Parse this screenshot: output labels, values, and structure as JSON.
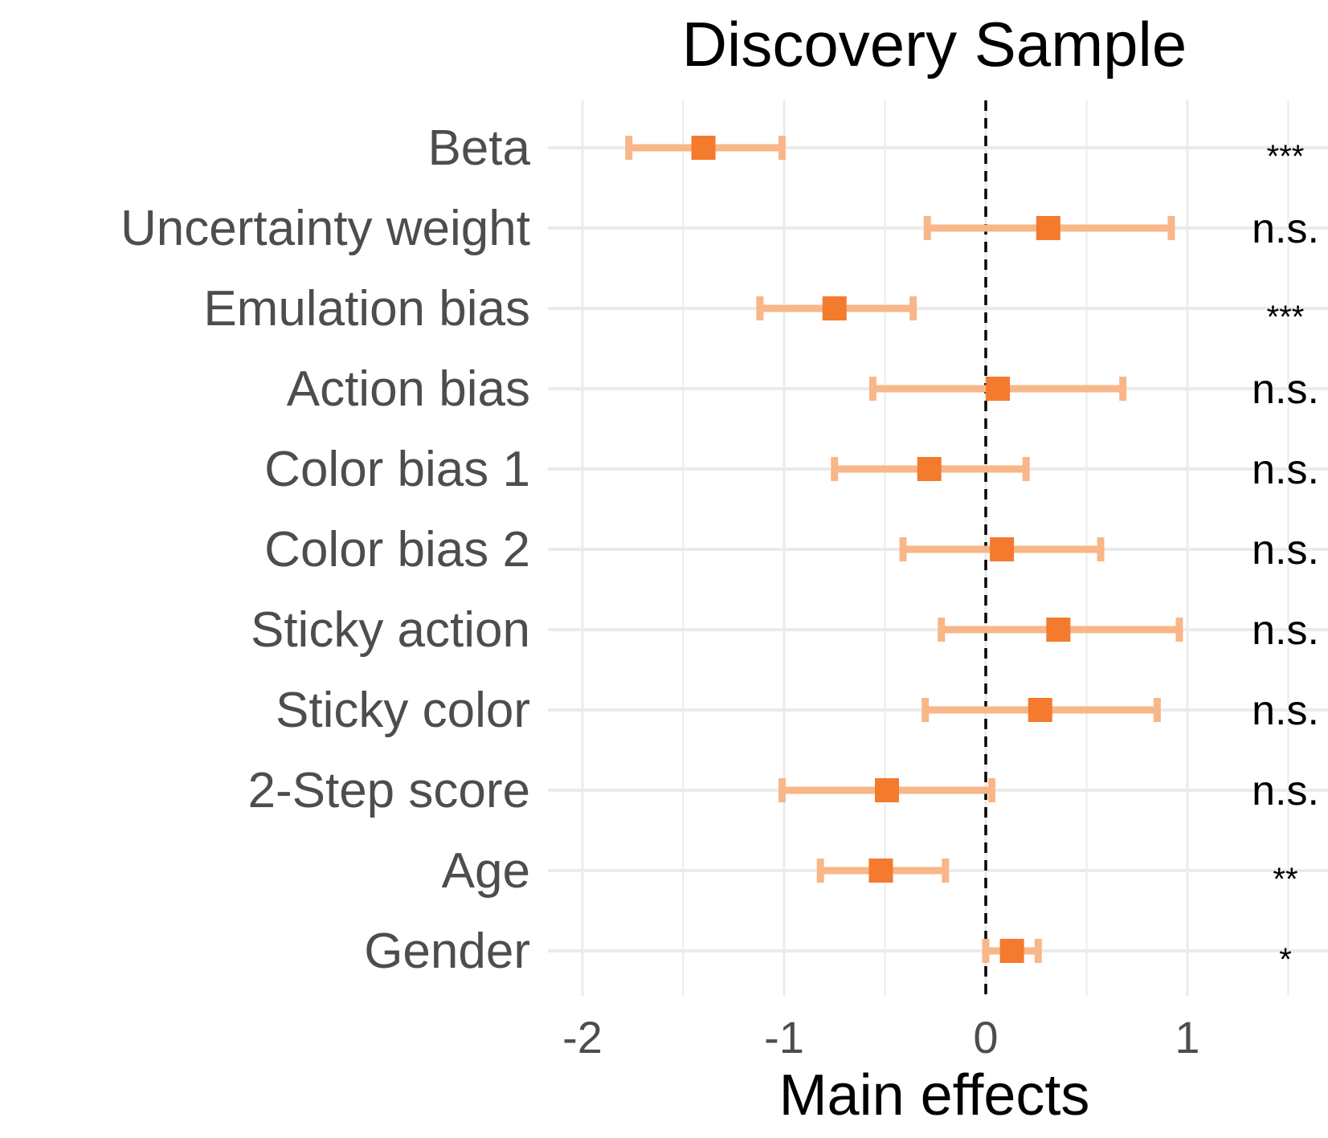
{
  "chart_data": {
    "type": "forest",
    "title": "Discovery Sample",
    "xlabel": "Main effects",
    "xlim": [
      -2.2,
      1.75
    ],
    "x_ticks": [
      -2,
      -1,
      0,
      1
    ],
    "x_tick_labels": [
      "-2",
      "-1",
      "0",
      "1"
    ],
    "reference_line": 0,
    "grid": true,
    "point_color": "#f47a2e",
    "errorbar_color": "#f9b688",
    "categories": [
      "Beta",
      "Uncertainty weight",
      "Emulation bias",
      "Action bias",
      "Color bias 1",
      "Color bias 2",
      "Sticky action",
      "Sticky color",
      "2-Step score",
      "Age",
      "Gender"
    ],
    "estimates": [
      -1.4,
      0.31,
      -0.75,
      0.06,
      -0.28,
      0.08,
      0.36,
      0.27,
      -0.49,
      -0.52,
      0.13
    ],
    "ci_low": [
      -1.77,
      -0.29,
      -1.12,
      -0.56,
      -0.75,
      -0.41,
      -0.22,
      -0.3,
      -1.01,
      -0.82,
      0.0
    ],
    "ci_high": [
      -1.01,
      0.92,
      -0.36,
      0.68,
      0.2,
      0.57,
      0.96,
      0.85,
      0.03,
      -0.2,
      0.26
    ],
    "significance": [
      "***",
      "n.s.",
      "***",
      "n.s.",
      "n.s.",
      "n.s.",
      "n.s.",
      "n.s.",
      "n.s.",
      "**",
      "*"
    ]
  }
}
